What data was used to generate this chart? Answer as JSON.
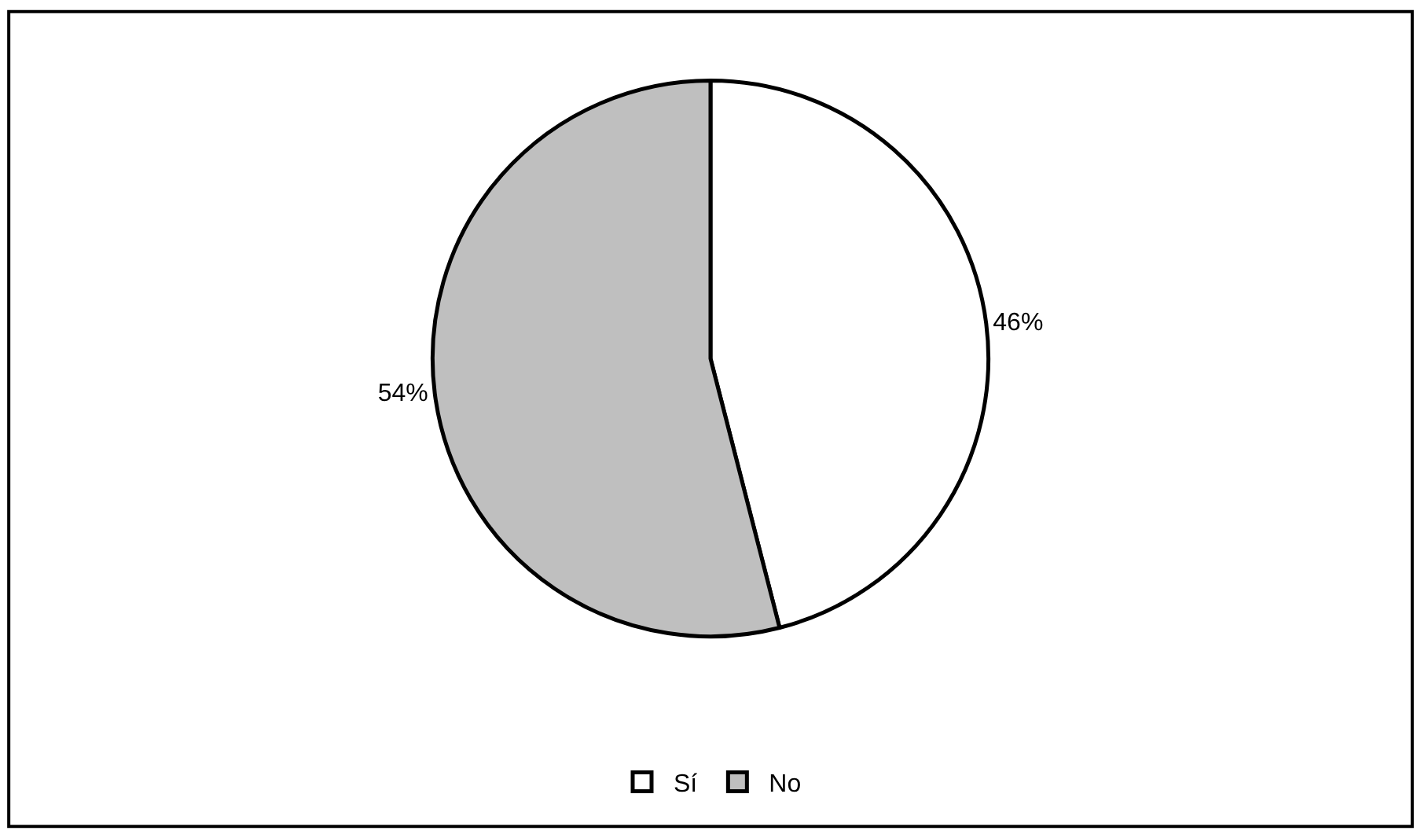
{
  "chart_data": {
    "type": "pie",
    "categories": [
      "Sí",
      "No"
    ],
    "values": [
      46,
      54
    ],
    "value_labels": [
      "46%",
      "54%"
    ],
    "colors": [
      "#ffffff",
      "#bfbfbf"
    ],
    "legend": "bottom"
  }
}
